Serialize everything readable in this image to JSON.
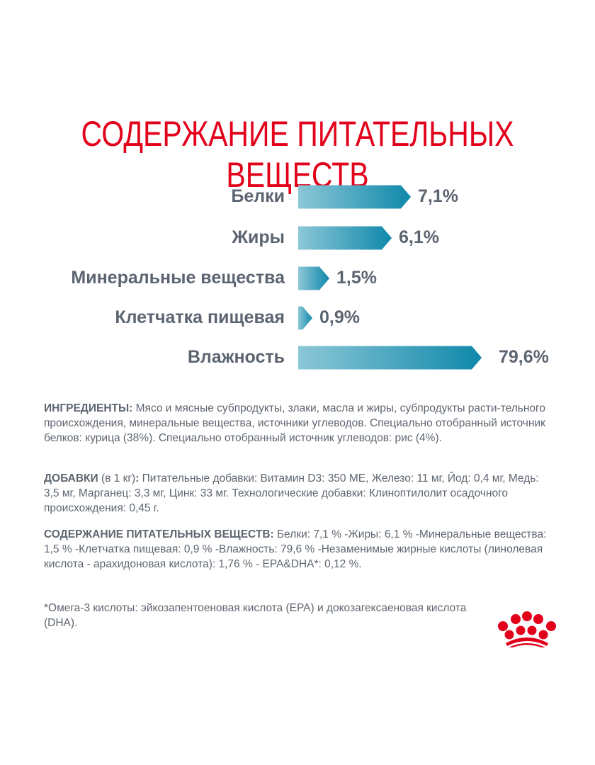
{
  "chart_data": {
    "type": "bar",
    "title": "СОДЕРЖАНИЕ ПИТАТЕЛЬНЫХ ВЕЩЕСТВ",
    "categories": [
      "Белки",
      "Жиры",
      "Минеральные вещества",
      "Клетчатка пищевая",
      "Влажность"
    ],
    "values": [
      7.1,
      6.1,
      1.5,
      0.9,
      79.6
    ],
    "value_labels": [
      "7,1%",
      "6,1%",
      "1,5%",
      "0,9%",
      "79,6%"
    ],
    "xlabel": "",
    "ylabel": "",
    "colors": {
      "bar_start": "#8cc7d7",
      "bar_end": "#0f88aa",
      "title": "#e2001a"
    }
  },
  "ingredients": {
    "label": "ИНГРЕДИЕНТЫ:",
    "text": " Мясо и мясные субпродукты, злаки, масла и жиры, субпродукты расти-тельного происхождения, минеральные вещества, источники углеводов. Специально отобранный источник белков: курица (38%). Специально отобранный источник углеводов: рис (4%)."
  },
  "additives": {
    "label": "ДОБАВКИ",
    "unit": " (в 1 кг)",
    "colon": ":",
    "text": " Питательные добавки: Витамин D3: 350 МЕ, Железо: 11 мг, Йод: 0,4 мг, Медь: 3,5 мг, Марганец: 3,3 мг, Цинк: 33 мг. Технологические добавки: Клиноптилолит осадочного происхождения: 0,45 г."
  },
  "nutrients": {
    "label": "СОДЕРЖАНИЕ ПИТАТЕЛЬНЫХ ВЕЩЕСТВ:",
    "text": " Белки: 7,1 % -Жиры: 6,1 % -Минеральные вещества: 1,5 % -Клетчатка пищевая: 0,9 % -Влажность: 79,6 % -Незаменимые жирные кислоты (линолевая кислота - арахидоновая кислота): 1,76 % - EPA&DHA*: 0,12 %."
  },
  "footnote": "*Омега-3 кислоты: эйкозапентоеновая кислота (EPA) и докозагексаеновая кислота (DHA).",
  "logo": {
    "name": "Royal Canin crown",
    "color": "#e2001a"
  }
}
